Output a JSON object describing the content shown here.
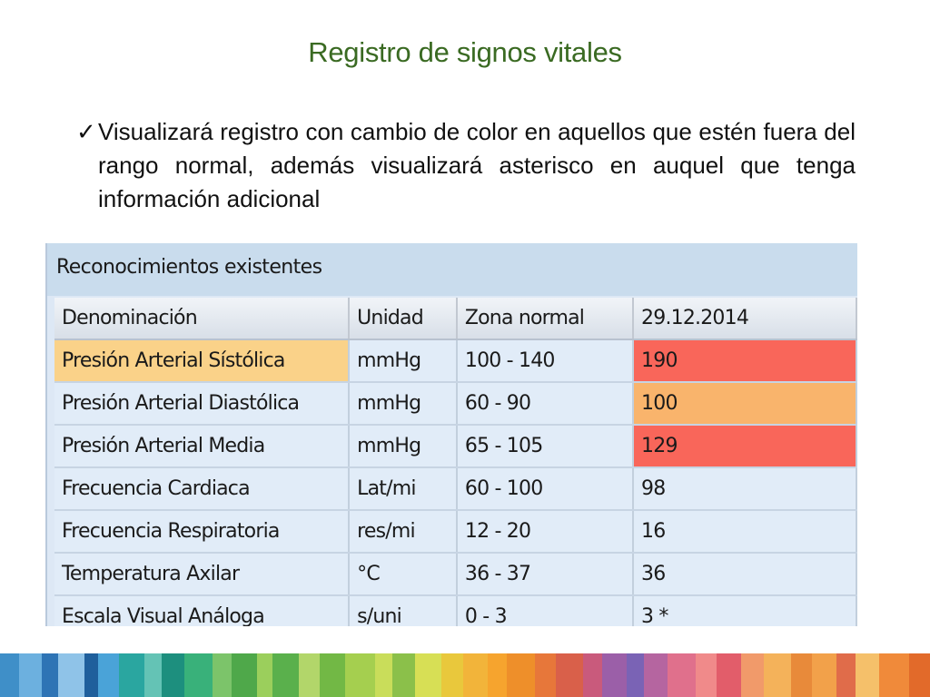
{
  "slide": {
    "title": "Registro de signos vitales",
    "bullet_icon": "checkmark-icon",
    "bullet_check": "✓",
    "bullet_text": "Visualizará registro con cambio de color en aquellos que estén fuera del rango normal, además visualizará asterisco en auquel que tenga información adicional"
  },
  "panel": {
    "title": "Reconocimientos existentes",
    "columns": [
      "Denominación",
      "Unidad",
      "Zona normal",
      "29.12.2014"
    ],
    "rows": [
      {
        "name": "Presión Arterial Sístólica",
        "unit": "mmHg",
        "range": "100 - 140",
        "value": "190"
      },
      {
        "name": "Presión Arterial Diastólica",
        "unit": "mmHg",
        "range": "60 - 90",
        "value": "100"
      },
      {
        "name": "Presión Arterial Media",
        "unit": "mmHg",
        "range": "65 - 105",
        "value": "129"
      },
      {
        "name": "Frecuencia Cardiaca",
        "unit": "Lat/mi",
        "range": "60 - 100",
        "value": "98"
      },
      {
        "name": "Frecuencia Respiratoria",
        "unit": "res/mi",
        "range": "12 - 20",
        "value": "16"
      },
      {
        "name": "Temperatura Axilar",
        "unit": "°C",
        "range": "36 - 37",
        "value": "36"
      },
      {
        "name": "Escala Visual Análoga",
        "unit": "s/uni",
        "range": "0 - 3",
        "value": "3 *"
      }
    ]
  },
  "colors": {
    "title_green": "#3a6a22",
    "selected_cell": "#fad289",
    "value_high": "#f9665a",
    "value_warning": "#f9b46c",
    "grid_cell": "#e1ecf8",
    "panel_header": "#c9dced"
  }
}
